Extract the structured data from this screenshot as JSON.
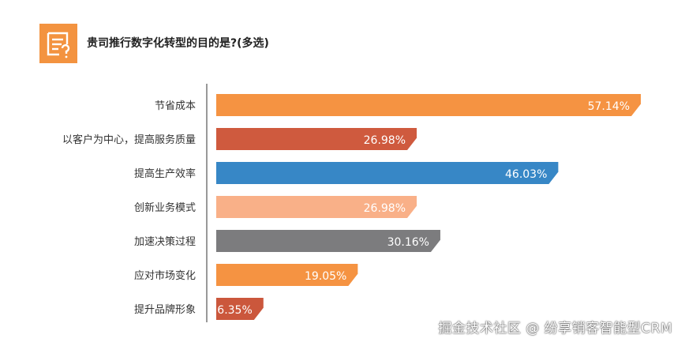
{
  "chart_data": {
    "type": "bar",
    "orientation": "horizontal",
    "title": "贵司推行数字化转型的目的是?(多选)",
    "categories": [
      "节省成本",
      "以客户为中心，提高服务质量",
      "提高生产效率",
      "创新业务模式",
      "加速决策过程",
      "应对市场变化",
      "提升品牌形象"
    ],
    "values": [
      57.14,
      26.98,
      46.03,
      26.98,
      30.16,
      19.05,
      6.35
    ],
    "labels": [
      "57.14%",
      "26.98%",
      "46.03%",
      "26.98%",
      "30.16%",
      "19.05%",
      "6.35%"
    ],
    "colors": [
      "#F59342",
      "#CF5A3E",
      "#3787C6",
      "#F9B088",
      "#7C7C7E",
      "#F59342",
      "#CB573C"
    ],
    "xlabel": "",
    "ylabel": "",
    "xlim": [
      0,
      60
    ],
    "grid": false
  },
  "header": {
    "icon": "survey-question-icon"
  },
  "watermark": "掘金技术社区 @ 纷享销客智能型CRM"
}
